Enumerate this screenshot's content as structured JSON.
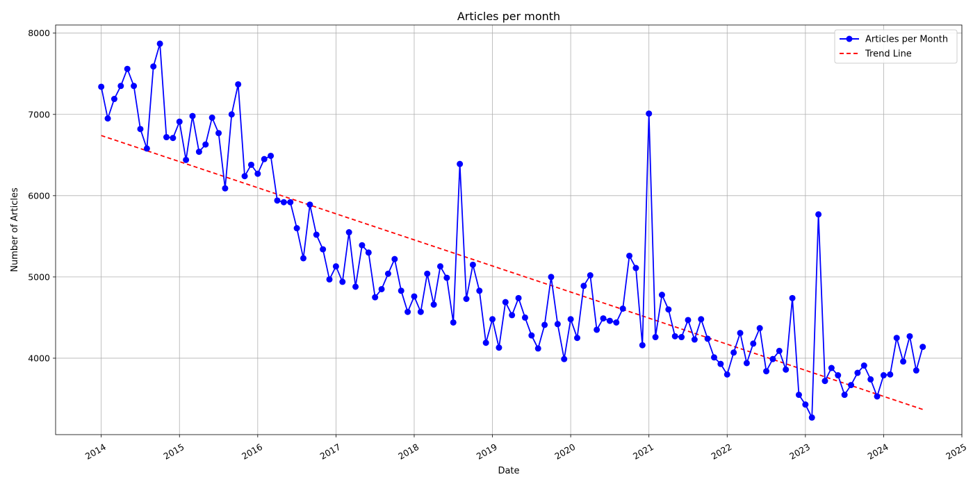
{
  "chart_data": {
    "type": "line",
    "title": "Articles per month",
    "xlabel": "Date",
    "ylabel": "Number of Articles",
    "x_ticks": [
      "2014",
      "2015",
      "2016",
      "2017",
      "2018",
      "2019",
      "2020",
      "2021",
      "2022",
      "2023",
      "2024",
      "2025"
    ],
    "y_ticks": [
      4000,
      5000,
      6000,
      7000,
      8000
    ],
    "x_range": [
      "2013-06",
      "2025-01"
    ],
    "ylim": [
      3060,
      8100
    ],
    "grid": true,
    "legend_position": "top-right",
    "x_tick_rotation": "rotated",
    "series": [
      {
        "name": "Articles per Month",
        "style": "line-marker",
        "color": "#0000ff",
        "x": [
          "2014-01",
          "2014-02",
          "2014-03",
          "2014-04",
          "2014-05",
          "2014-06",
          "2014-07",
          "2014-08",
          "2014-09",
          "2014-10",
          "2014-11",
          "2014-12",
          "2015-01",
          "2015-02",
          "2015-03",
          "2015-04",
          "2015-05",
          "2015-06",
          "2015-07",
          "2015-08",
          "2015-09",
          "2015-10",
          "2015-11",
          "2015-12",
          "2016-01",
          "2016-02",
          "2016-03",
          "2016-04",
          "2016-05",
          "2016-06",
          "2016-07",
          "2016-08",
          "2016-09",
          "2016-10",
          "2016-11",
          "2016-12",
          "2017-01",
          "2017-02",
          "2017-03",
          "2017-04",
          "2017-05",
          "2017-06",
          "2017-07",
          "2017-08",
          "2017-09",
          "2017-10",
          "2017-11",
          "2017-12",
          "2018-01",
          "2018-02",
          "2018-03",
          "2018-04",
          "2018-05",
          "2018-06",
          "2018-07",
          "2018-08",
          "2018-09",
          "2018-10",
          "2018-11",
          "2018-12",
          "2019-01",
          "2019-02",
          "2019-03",
          "2019-04",
          "2019-05",
          "2019-06",
          "2019-07",
          "2019-08",
          "2019-09",
          "2019-10",
          "2019-11",
          "2019-12",
          "2020-01",
          "2020-02",
          "2020-03",
          "2020-04",
          "2020-05",
          "2020-06",
          "2020-07",
          "2020-08",
          "2020-09",
          "2020-10",
          "2020-11",
          "2020-12",
          "2021-01",
          "2021-02",
          "2021-03",
          "2021-04",
          "2021-05",
          "2021-06",
          "2021-07",
          "2021-08",
          "2021-09",
          "2021-10",
          "2021-11",
          "2021-12",
          "2022-01",
          "2022-02",
          "2022-03",
          "2022-04",
          "2022-05",
          "2022-06",
          "2022-07",
          "2022-08",
          "2022-09",
          "2022-10",
          "2022-11",
          "2022-12",
          "2023-01",
          "2023-02",
          "2023-03",
          "2023-04",
          "2023-05",
          "2023-06",
          "2023-07",
          "2023-08",
          "2023-09",
          "2023-10",
          "2023-11",
          "2023-12",
          "2024-01",
          "2024-02",
          "2024-03",
          "2024-04",
          "2024-05",
          "2024-06",
          "2024-07"
        ],
        "values": [
          7340,
          6950,
          7190,
          7350,
          7560,
          7350,
          6820,
          6580,
          7590,
          7870,
          6720,
          6710,
          6910,
          6440,
          6980,
          6540,
          6630,
          6960,
          6770,
          6090,
          7000,
          7370,
          6240,
          6380,
          6270,
          6450,
          6490,
          5940,
          5920,
          5920,
          5600,
          5230,
          5890,
          5520,
          5340,
          4970,
          5130,
          4940,
          5550,
          4880,
          5390,
          5300,
          4750,
          4850,
          5040,
          5220,
          4830,
          4570,
          4760,
          4570,
          5040,
          4660,
          5130,
          4990,
          4440,
          6390,
          4730,
          5150,
          4830,
          4190,
          4480,
          4130,
          4690,
          4530,
          4740,
          4500,
          4280,
          4120,
          4410,
          5000,
          4420,
          3990,
          4480,
          4250,
          4890,
          5020,
          4350,
          4490,
          4460,
          4440,
          4610,
          5260,
          5110,
          4160,
          7010,
          4260,
          4780,
          4600,
          4270,
          4260,
          4470,
          4230,
          4480,
          4240,
          4010,
          3930,
          3800,
          4070,
          4310,
          3940,
          4180,
          4370,
          3840,
          3990,
          4090,
          3860,
          4740,
          3550,
          3430,
          3270,
          5770,
          3720,
          3880,
          3790,
          3550,
          3670,
          3820,
          3910,
          3740,
          3530,
          3790,
          3800,
          4250,
          3960,
          4270,
          3850,
          4140
        ]
      },
      {
        "name": "Trend Line",
        "style": "dashed",
        "color": "#ff0000",
        "x": [
          "2014-01",
          "2024-07"
        ],
        "values": [
          6740,
          3370
        ]
      }
    ]
  }
}
